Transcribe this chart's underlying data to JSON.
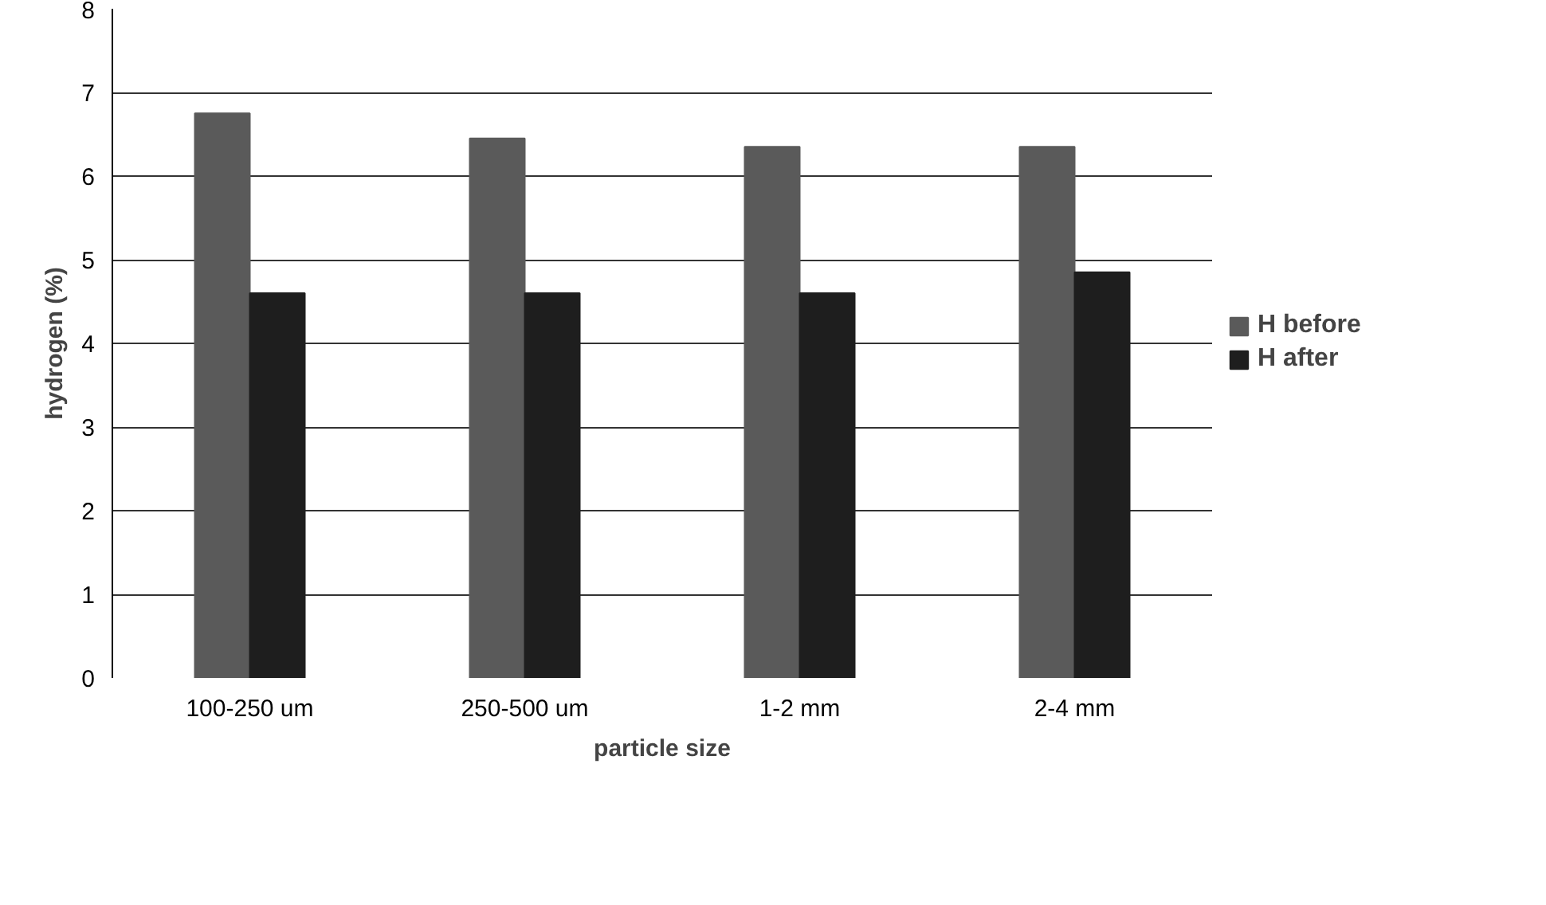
{
  "chart_data": {
    "type": "bar",
    "xlabel": "particle size",
    "ylabel": "hydrogen (%)",
    "categories": [
      "100-250 um",
      "250-500 um",
      "1-2 mm",
      "2-4 mm"
    ],
    "series": [
      {
        "name": "H before",
        "color": "#5a5a5a",
        "values": [
          6.75,
          6.45,
          6.35,
          6.35
        ]
      },
      {
        "name": "H after",
        "color": "#1e1e1e",
        "values": [
          4.6,
          4.6,
          4.6,
          4.85
        ]
      }
    ],
    "ylim": [
      0,
      8
    ],
    "yticks": [
      0,
      1,
      2,
      3,
      4,
      5,
      6,
      7,
      8
    ],
    "grid": "y",
    "legend": "right"
  }
}
